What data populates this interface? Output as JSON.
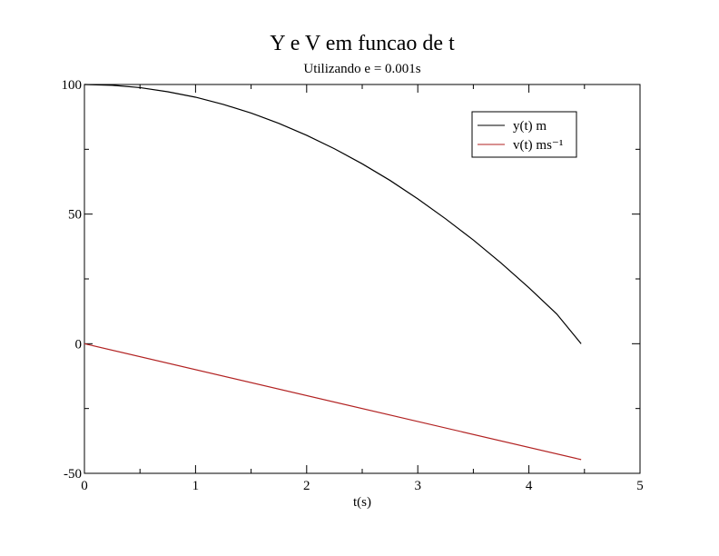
{
  "chart_data": {
    "type": "line",
    "title": "Y e V em funcao de t",
    "subtitle": "Utilizando e = 0.001s",
    "xlabel": "t(s)",
    "ylabel": "",
    "xlim": [
      0,
      5
    ],
    "ylim": [
      -50,
      100
    ],
    "x_ticks": [
      0,
      1,
      2,
      3,
      4,
      5
    ],
    "y_ticks": [
      -50,
      0,
      50,
      100
    ],
    "x_tick_labels": [
      "0",
      "1",
      "2",
      "3",
      "4",
      "5"
    ],
    "y_tick_labels": [
      "-50",
      "0",
      "50",
      "100"
    ],
    "grid": false,
    "legend_position": "top-right",
    "series": [
      {
        "name": "y(t) m",
        "color": "#000000",
        "x": [
          0,
          0.25,
          0.5,
          0.75,
          1.0,
          1.25,
          1.5,
          1.75,
          2.0,
          2.25,
          2.5,
          2.75,
          3.0,
          3.25,
          3.5,
          3.75,
          4.0,
          4.25,
          4.47
        ],
        "values": [
          100,
          99.7,
          98.8,
          97.2,
          95.1,
          92.3,
          89.0,
          85.0,
          80.4,
          75.2,
          69.4,
          63.0,
          55.9,
          48.2,
          40.0,
          31.1,
          21.6,
          11.5,
          0
        ]
      },
      {
        "name": "v(t) ms⁻¹",
        "color": "#b22222",
        "x": [
          0,
          4.47
        ],
        "values": [
          0,
          -44.7
        ]
      }
    ]
  }
}
